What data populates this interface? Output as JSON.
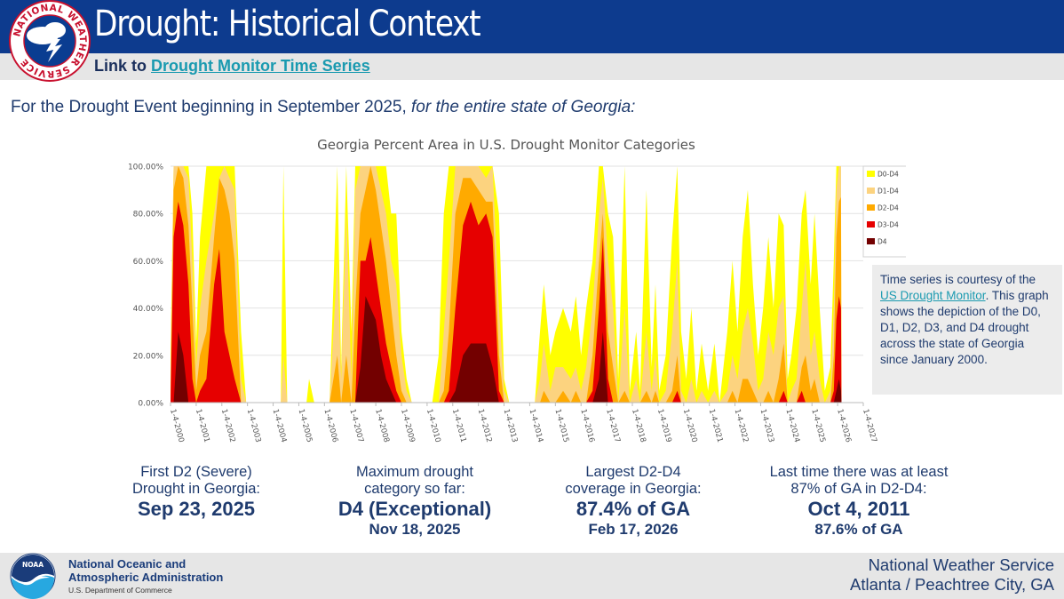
{
  "header": {
    "title": "Drought: Historical Context",
    "link_prefix": "Link to",
    "link_text": "Drought Monitor Time Series"
  },
  "logo": {
    "nws_ring_text": "NATIONAL WEATHER SERVICE",
    "noaa_text": "NOAA"
  },
  "subtitle": {
    "text": "For the Drought Event beginning in September 2025,",
    "emphasis": "for the entire state of Georgia:"
  },
  "info_box": {
    "part1": "Time series is courtesy of the",
    "link": "US Drought Monitor",
    "part2": ". This graph shows the depiction of the D0, D1, D2, D3, and D4 drought across the state of Georgia since January 2000."
  },
  "stats": [
    {
      "label_line1": "First D2 (Severe)",
      "label_line2": "Drought in Georgia:",
      "value": "Sep 23, 2025",
      "detail": ""
    },
    {
      "label_line1": "Maximum drought",
      "label_line2": "category so far:",
      "value": "D4 (Exceptional)",
      "detail": "Nov 18, 2025"
    },
    {
      "label_line1": "Largest D2-D4",
      "label_line2": "coverage in Georgia:",
      "value": "87.4% of GA",
      "detail": "Feb 17, 2026"
    },
    {
      "label_line1": "Last time there was at least",
      "label_line2": "87% of GA in D2-D4:",
      "value": "Oct 4, 2011",
      "detail": "87.6% of GA"
    }
  ],
  "footer": {
    "noaa_line1": "National Oceanic and",
    "noaa_line2": "Atmospheric Administration",
    "noaa_dept": "U.S. Department of Commerce",
    "nws_line1": "National Weather Service",
    "nws_line2": "Atlanta / Peachtree City, GA"
  },
  "colors": {
    "header_blue": "#0d3b8e",
    "text_navy": "#1f3b6e",
    "link_teal": "#1a9ab0",
    "D0": "#ffff00",
    "D1": "#fcd37f",
    "D2": "#ffaa00",
    "D3": "#e60000",
    "D4": "#730000"
  },
  "chart_data": {
    "type": "area",
    "title": "Georgia Percent Area in U.S. Drought Monitor Categories",
    "xlabel": "",
    "ylabel": "",
    "ylim": [
      0,
      100
    ],
    "xlim": [
      2000,
      2027
    ],
    "y_ticks": [
      "0.00%",
      "20.00%",
      "40.00%",
      "60.00%",
      "80.00%",
      "100.00%"
    ],
    "x_ticks": [
      "1-4-2000",
      "1-4-2001",
      "1-4-2002",
      "1-4-2003",
      "1-4-2004",
      "1-4-2005",
      "1-4-2006",
      "1-4-2007",
      "1-4-2008",
      "1-4-2009",
      "1-4-2010",
      "1-4-2011",
      "1-4-2012",
      "1-4-2013",
      "1-4-2014",
      "1-4-2015",
      "1-4-2016",
      "1-4-2017",
      "1-4-2018",
      "1-4-2019",
      "1-4-2020",
      "1-4-2021",
      "1-4-2022",
      "1-4-2023",
      "1-4-2024",
      "1-4-2025",
      "1-4-2026",
      "1-4-2027"
    ],
    "legend": [
      "D0-D4",
      "D1-D4",
      "D2-D4",
      "D3-D4",
      "D4"
    ],
    "legend_position": "top-right",
    "series_order": [
      "D0-D4",
      "D1-D4",
      "D2-D4",
      "D3-D4",
      "D4"
    ],
    "points": [
      {
        "x": 2000.0,
        "v": [
          20,
          15,
          5,
          0,
          0
        ]
      },
      {
        "x": 2000.12,
        "v": [
          100,
          100,
          90,
          70,
          0
        ]
      },
      {
        "x": 2000.3,
        "v": [
          100,
          100,
          100,
          85,
          30
        ]
      },
      {
        "x": 2000.5,
        "v": [
          100,
          100,
          95,
          75,
          20
        ]
      },
      {
        "x": 2000.7,
        "v": [
          100,
          95,
          75,
          50,
          0
        ]
      },
      {
        "x": 2000.85,
        "v": [
          80,
          60,
          40,
          10,
          0
        ]
      },
      {
        "x": 2001.0,
        "v": [
          25,
          15,
          5,
          0,
          0
        ]
      },
      {
        "x": 2001.15,
        "v": [
          70,
          40,
          20,
          5,
          0
        ]
      },
      {
        "x": 2001.4,
        "v": [
          100,
          60,
          30,
          10,
          0
        ]
      },
      {
        "x": 2001.7,
        "v": [
          100,
          80,
          70,
          50,
          0
        ]
      },
      {
        "x": 2001.9,
        "v": [
          100,
          95,
          95,
          65,
          0
        ]
      },
      {
        "x": 2002.1,
        "v": [
          100,
          100,
          90,
          30,
          0
        ]
      },
      {
        "x": 2002.3,
        "v": [
          100,
          95,
          80,
          20,
          0
        ]
      },
      {
        "x": 2002.5,
        "v": [
          100,
          90,
          60,
          10,
          0
        ]
      },
      {
        "x": 2002.75,
        "v": [
          30,
          10,
          0,
          0,
          0
        ]
      },
      {
        "x": 2002.95,
        "v": [
          0,
          0,
          0,
          0,
          0
        ]
      },
      {
        "x": 2003.4,
        "v": [
          0,
          0,
          0,
          0,
          0
        ]
      },
      {
        "x": 2004.3,
        "v": [
          0,
          0,
          0,
          0,
          0
        ]
      },
      {
        "x": 2004.4,
        "v": [
          100,
          20,
          0,
          0,
          0
        ]
      },
      {
        "x": 2004.55,
        "v": [
          0,
          0,
          0,
          0,
          0
        ]
      },
      {
        "x": 2005.3,
        "v": [
          0,
          0,
          0,
          0,
          0
        ]
      },
      {
        "x": 2005.4,
        "v": [
          10,
          0,
          0,
          0,
          0
        ]
      },
      {
        "x": 2005.6,
        "v": [
          0,
          0,
          0,
          0,
          0
        ]
      },
      {
        "x": 2006.2,
        "v": [
          0,
          0,
          0,
          0,
          0
        ]
      },
      {
        "x": 2006.5,
        "v": [
          100,
          60,
          20,
          0,
          0
        ]
      },
      {
        "x": 2006.65,
        "v": [
          15,
          10,
          0,
          0,
          0
        ]
      },
      {
        "x": 2006.85,
        "v": [
          100,
          80,
          20,
          0,
          0
        ]
      },
      {
        "x": 2007.05,
        "v": [
          30,
          10,
          0,
          0,
          0
        ]
      },
      {
        "x": 2007.2,
        "v": [
          100,
          90,
          40,
          0,
          0
        ]
      },
      {
        "x": 2007.4,
        "v": [
          100,
          100,
          80,
          60,
          15
        ]
      },
      {
        "x": 2007.6,
        "v": [
          100,
          100,
          90,
          60,
          45
        ]
      },
      {
        "x": 2007.8,
        "v": [
          100,
          100,
          100,
          70,
          40
        ]
      },
      {
        "x": 2008.0,
        "v": [
          100,
          100,
          90,
          55,
          35
        ]
      },
      {
        "x": 2008.2,
        "v": [
          100,
          90,
          75,
          40,
          20
        ]
      },
      {
        "x": 2008.4,
        "v": [
          100,
          80,
          60,
          25,
          10
        ]
      },
      {
        "x": 2008.6,
        "v": [
          80,
          60,
          40,
          15,
          5
        ]
      },
      {
        "x": 2008.8,
        "v": [
          80,
          50,
          20,
          5,
          0
        ]
      },
      {
        "x": 2009.0,
        "v": [
          30,
          20,
          5,
          0,
          0
        ]
      },
      {
        "x": 2009.2,
        "v": [
          10,
          5,
          0,
          0,
          0
        ]
      },
      {
        "x": 2009.4,
        "v": [
          0,
          0,
          0,
          0,
          0
        ]
      },
      {
        "x": 2010.2,
        "v": [
          0,
          0,
          0,
          0,
          0
        ]
      },
      {
        "x": 2010.45,
        "v": [
          20,
          0,
          0,
          0,
          0
        ]
      },
      {
        "x": 2010.65,
        "v": [
          80,
          30,
          5,
          0,
          0
        ]
      },
      {
        "x": 2010.85,
        "v": [
          100,
          60,
          30,
          5,
          0
        ]
      },
      {
        "x": 2011.1,
        "v": [
          100,
          100,
          80,
          40,
          5
        ]
      },
      {
        "x": 2011.4,
        "v": [
          100,
          100,
          95,
          75,
          20
        ]
      },
      {
        "x": 2011.7,
        "v": [
          100,
          100,
          95,
          85,
          25
        ]
      },
      {
        "x": 2012.0,
        "v": [
          100,
          100,
          90,
          75,
          25
        ]
      },
      {
        "x": 2012.3,
        "v": [
          100,
          95,
          85,
          80,
          25
        ]
      },
      {
        "x": 2012.55,
        "v": [
          100,
          100,
          85,
          70,
          15
        ]
      },
      {
        "x": 2012.8,
        "v": [
          80,
          40,
          20,
          5,
          0
        ]
      },
      {
        "x": 2013.0,
        "v": [
          10,
          5,
          0,
          0,
          0
        ]
      },
      {
        "x": 2013.2,
        "v": [
          0,
          0,
          0,
          0,
          0
        ]
      },
      {
        "x": 2014.2,
        "v": [
          0,
          0,
          0,
          0,
          0
        ]
      },
      {
        "x": 2014.4,
        "v": [
          30,
          10,
          0,
          0,
          0
        ]
      },
      {
        "x": 2014.55,
        "v": [
          50,
          25,
          5,
          0,
          0
        ]
      },
      {
        "x": 2014.8,
        "v": [
          20,
          5,
          0,
          0,
          0
        ]
      },
      {
        "x": 2015.0,
        "v": [
          30,
          15,
          0,
          0,
          0
        ]
      },
      {
        "x": 2015.3,
        "v": [
          40,
          15,
          5,
          0,
          0
        ]
      },
      {
        "x": 2015.6,
        "v": [
          30,
          10,
          0,
          0,
          0
        ]
      },
      {
        "x": 2015.8,
        "v": [
          45,
          15,
          5,
          0,
          0
        ]
      },
      {
        "x": 2016.0,
        "v": [
          20,
          5,
          0,
          0,
          0
        ]
      },
      {
        "x": 2016.2,
        "v": [
          40,
          15,
          0,
          0,
          0
        ]
      },
      {
        "x": 2016.45,
        "v": [
          60,
          40,
          20,
          5,
          0
        ]
      },
      {
        "x": 2016.7,
        "v": [
          100,
          80,
          60,
          40,
          10
        ]
      },
      {
        "x": 2016.85,
        "v": [
          100,
          95,
          80,
          70,
          30
        ]
      },
      {
        "x": 2017.05,
        "v": [
          80,
          60,
          30,
          10,
          0
        ]
      },
      {
        "x": 2017.25,
        "v": [
          70,
          40,
          15,
          0,
          0
        ]
      },
      {
        "x": 2017.45,
        "v": [
          10,
          0,
          0,
          0,
          0
        ]
      },
      {
        "x": 2017.7,
        "v": [
          100,
          40,
          5,
          0,
          0
        ]
      },
      {
        "x": 2017.9,
        "v": [
          5,
          0,
          0,
          0,
          0
        ]
      },
      {
        "x": 2018.15,
        "v": [
          30,
          10,
          0,
          0,
          0
        ]
      },
      {
        "x": 2018.3,
        "v": [
          5,
          0,
          0,
          0,
          0
        ]
      },
      {
        "x": 2018.55,
        "v": [
          90,
          30,
          5,
          0,
          0
        ]
      },
      {
        "x": 2018.75,
        "v": [
          15,
          5,
          0,
          0,
          0
        ]
      },
      {
        "x": 2018.9,
        "v": [
          50,
          20,
          5,
          0,
          0
        ]
      },
      {
        "x": 2019.05,
        "v": [
          5,
          0,
          0,
          0,
          0
        ]
      },
      {
        "x": 2019.3,
        "v": [
          20,
          5,
          0,
          0,
          0
        ]
      },
      {
        "x": 2019.55,
        "v": [
          70,
          30,
          5,
          0,
          0
        ]
      },
      {
        "x": 2019.75,
        "v": [
          100,
          60,
          20,
          5,
          0
        ]
      },
      {
        "x": 2019.9,
        "v": [
          30,
          5,
          0,
          0,
          0
        ]
      },
      {
        "x": 2020.1,
        "v": [
          10,
          0,
          0,
          0,
          0
        ]
      },
      {
        "x": 2020.3,
        "v": [
          40,
          10,
          0,
          0,
          0
        ]
      },
      {
        "x": 2020.5,
        "v": [
          5,
          0,
          0,
          0,
          0
        ]
      },
      {
        "x": 2020.7,
        "v": [
          25,
          5,
          0,
          0,
          0
        ]
      },
      {
        "x": 2020.95,
        "v": [
          5,
          0,
          0,
          0,
          0
        ]
      },
      {
        "x": 2021.2,
        "v": [
          25,
          5,
          0,
          0,
          0
        ]
      },
      {
        "x": 2021.4,
        "v": [
          0,
          0,
          0,
          0,
          0
        ]
      },
      {
        "x": 2021.7,
        "v": [
          30,
          5,
          0,
          0,
          0
        ]
      },
      {
        "x": 2021.9,
        "v": [
          60,
          20,
          5,
          0,
          0
        ]
      },
      {
        "x": 2022.1,
        "v": [
          30,
          10,
          0,
          0,
          0
        ]
      },
      {
        "x": 2022.3,
        "v": [
          70,
          30,
          10,
          0,
          0
        ]
      },
      {
        "x": 2022.5,
        "v": [
          90,
          40,
          10,
          0,
          0
        ]
      },
      {
        "x": 2022.7,
        "v": [
          50,
          25,
          5,
          0,
          0
        ]
      },
      {
        "x": 2022.9,
        "v": [
          20,
          5,
          0,
          0,
          0
        ]
      },
      {
        "x": 2023.1,
        "v": [
          40,
          10,
          0,
          0,
          0
        ]
      },
      {
        "x": 2023.3,
        "v": [
          70,
          30,
          5,
          0,
          0
        ]
      },
      {
        "x": 2023.5,
        "v": [
          40,
          20,
          0,
          0,
          0
        ]
      },
      {
        "x": 2023.7,
        "v": [
          80,
          40,
          10,
          0,
          0
        ]
      },
      {
        "x": 2023.9,
        "v": [
          75,
          45,
          25,
          5,
          0
        ]
      },
      {
        "x": 2024.05,
        "v": [
          10,
          0,
          0,
          0,
          0
        ]
      },
      {
        "x": 2024.2,
        "v": [
          20,
          5,
          0,
          0,
          0
        ]
      },
      {
        "x": 2024.4,
        "v": [
          40,
          10,
          0,
          0,
          0
        ]
      },
      {
        "x": 2024.6,
        "v": [
          80,
          40,
          15,
          5,
          0
        ]
      },
      {
        "x": 2024.75,
        "v": [
          90,
          60,
          20,
          0,
          0
        ]
      },
      {
        "x": 2024.95,
        "v": [
          50,
          20,
          5,
          0,
          0
        ]
      },
      {
        "x": 2025.1,
        "v": [
          80,
          30,
          10,
          0,
          0
        ]
      },
      {
        "x": 2025.3,
        "v": [
          40,
          10,
          0,
          0,
          0
        ]
      },
      {
        "x": 2025.5,
        "v": [
          5,
          0,
          0,
          0,
          0
        ]
      },
      {
        "x": 2025.72,
        "v": [
          15,
          5,
          0,
          0,
          0
        ]
      },
      {
        "x": 2025.85,
        "v": [
          60,
          40,
          20,
          5,
          0
        ]
      },
      {
        "x": 2025.95,
        "v": [
          100,
          90,
          70,
          35,
          5
        ]
      },
      {
        "x": 2026.05,
        "v": [
          100,
          100,
          85,
          45,
          10
        ]
      },
      {
        "x": 2026.13,
        "v": [
          100,
          100,
          87,
          40,
          5
        ]
      },
      {
        "x": 2026.15,
        "v": [
          0,
          0,
          0,
          0,
          0
        ]
      }
    ]
  }
}
